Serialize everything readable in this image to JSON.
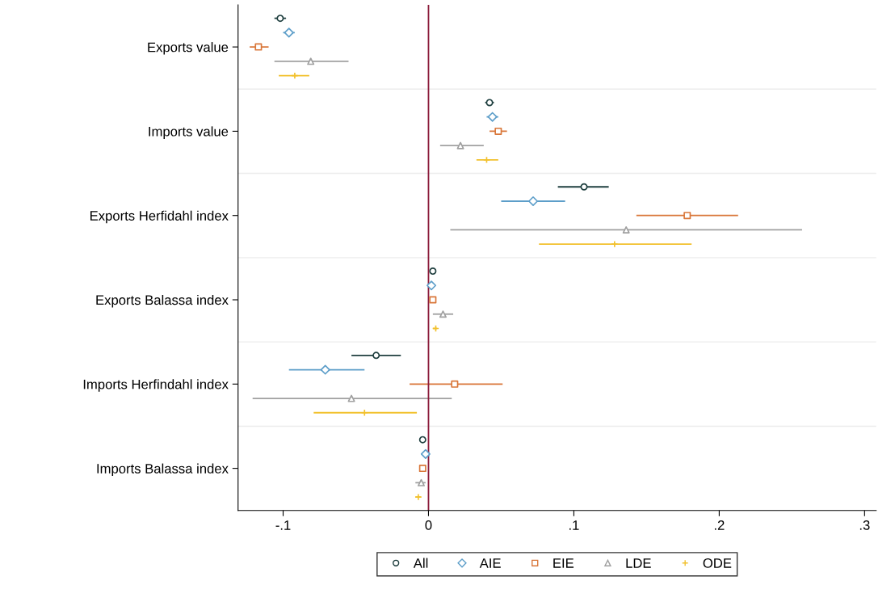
{
  "chart_data": {
    "type": "scatter",
    "orientation": "horizontal",
    "categories": [
      "Exports value",
      "Imports value",
      "Exports Herfidahl index",
      "Exports Balassa index",
      "Imports Herfindahl index",
      "Imports Balassa index"
    ],
    "series": [
      {
        "name": "All",
        "color": "#1f3f3f",
        "marker": "circle",
        "values": [
          -0.102,
          0.042,
          0.107,
          0.003,
          -0.036,
          -0.004
        ],
        "errors": [
          [
            -0.106,
            -0.098
          ],
          [
            0.039,
            0.045
          ],
          [
            0.089,
            0.124
          ],
          [
            0.002,
            0.004
          ],
          [
            -0.053,
            -0.019
          ],
          [
            -0.005,
            -0.003
          ]
        ]
      },
      {
        "name": "AIE",
        "color": "#5d9ec9",
        "marker": "diamond",
        "values": [
          -0.096,
          0.044,
          0.072,
          0.002,
          -0.071,
          -0.002
        ],
        "errors": [
          [
            -0.1,
            -0.092
          ],
          [
            0.04,
            0.048
          ],
          [
            0.05,
            0.094
          ],
          [
            0.0,
            0.004
          ],
          [
            -0.096,
            -0.044
          ],
          [
            -0.004,
            0.0
          ]
        ]
      },
      {
        "name": "EIE",
        "color": "#d9773a",
        "marker": "square",
        "values": [
          -0.117,
          0.048,
          0.178,
          0.003,
          0.018,
          -0.004
        ],
        "errors": [
          [
            -0.123,
            -0.11
          ],
          [
            0.042,
            0.054
          ],
          [
            0.143,
            0.213
          ],
          [
            0.002,
            0.004
          ],
          [
            -0.013,
            0.051
          ],
          [
            -0.006,
            -0.002
          ]
        ]
      },
      {
        "name": "LDE",
        "color": "#a0a0a0",
        "marker": "triangle",
        "values": [
          -0.081,
          0.022,
          0.136,
          0.01,
          -0.053,
          -0.005
        ],
        "errors": [
          [
            -0.106,
            -0.055
          ],
          [
            0.008,
            0.038
          ],
          [
            0.015,
            0.257
          ],
          [
            0.003,
            0.017
          ],
          [
            -0.121,
            0.016
          ],
          [
            -0.009,
            -0.002
          ]
        ]
      },
      {
        "name": "ODE",
        "color": "#f2c12e",
        "marker": "cross",
        "values": [
          -0.092,
          0.04,
          0.128,
          0.005,
          -0.044,
          -0.007
        ],
        "errors": [
          [
            -0.103,
            -0.082
          ],
          [
            0.033,
            0.048
          ],
          [
            0.076,
            0.181
          ],
          [
            0.003,
            0.006
          ],
          [
            -0.079,
            -0.008
          ],
          [
            -0.009,
            -0.005
          ]
        ]
      }
    ],
    "xlim": [
      -0.131,
      0.308
    ],
    "xticks": [
      {
        "value": -0.1,
        "label": "-.1"
      },
      0,
      {
        "value": 0.1,
        "label": ".1"
      },
      {
        "value": 0.2,
        "label": ".2"
      },
      {
        "value": 0.3,
        "label": ".3"
      }
    ],
    "ref_lines": [
      {
        "axis": "x",
        "value": 0,
        "color": "#8b1a3a"
      }
    ],
    "grid": "y",
    "legend": "bottom"
  }
}
